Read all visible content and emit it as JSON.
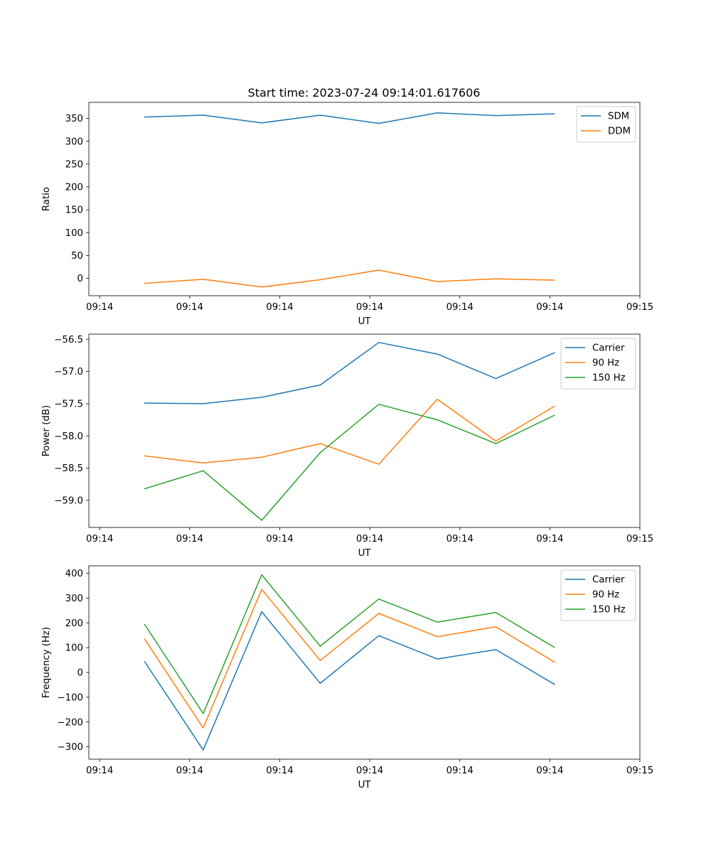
{
  "title": "Start time: 2023-07-24 09:14:01.617606",
  "chart_data": [
    {
      "type": "line",
      "title": "Start time: 2023-07-24 09:14:01.617606",
      "xlabel": "UT",
      "ylabel": "Ratio",
      "x": [
        0.5,
        1.15,
        1.8,
        2.45,
        3.1,
        3.75,
        4.4,
        5.05
      ],
      "xlim": [
        -0.12,
        6.0
      ],
      "xticks": [
        {
          "value": 0,
          "label": "09:14"
        },
        {
          "value": 1,
          "label": "09:14"
        },
        {
          "value": 2,
          "label": "09:14"
        },
        {
          "value": 3,
          "label": "09:14"
        },
        {
          "value": 4,
          "label": "09:14"
        },
        {
          "value": 5,
          "label": "09:14"
        },
        {
          "value": 6,
          "label": "09:15"
        }
      ],
      "ylim": [
        -38,
        385
      ],
      "yticks": [
        {
          "value": 0,
          "label": "0"
        },
        {
          "value": 50,
          "label": "50"
        },
        {
          "value": 100,
          "label": "100"
        },
        {
          "value": 150,
          "label": "150"
        },
        {
          "value": 200,
          "label": "200"
        },
        {
          "value": 250,
          "label": "250"
        },
        {
          "value": 300,
          "label": "300"
        },
        {
          "value": 350,
          "label": "350"
        }
      ],
      "legend": "top-right",
      "series": [
        {
          "name": "SDM",
          "color": "#1f77b4",
          "values": [
            353,
            357,
            340,
            357,
            339,
            362,
            356,
            360
          ]
        },
        {
          "name": "DDM",
          "color": "#ff7f0e",
          "values": [
            -11,
            -2,
            -19,
            -3,
            18,
            -7,
            -1,
            -4
          ]
        }
      ]
    },
    {
      "type": "line",
      "title": "",
      "xlabel": "UT",
      "ylabel": "Power (dB)",
      "x": [
        0.5,
        1.15,
        1.8,
        2.45,
        3.1,
        3.75,
        4.4,
        5.05
      ],
      "xlim": [
        -0.12,
        6.0
      ],
      "xticks": [
        {
          "value": 0,
          "label": "09:14"
        },
        {
          "value": 1,
          "label": "09:14"
        },
        {
          "value": 2,
          "label": "09:14"
        },
        {
          "value": 3,
          "label": "09:14"
        },
        {
          "value": 4,
          "label": "09:14"
        },
        {
          "value": 5,
          "label": "09:14"
        },
        {
          "value": 6,
          "label": "09:15"
        }
      ],
      "ylim": [
        -59.42,
        -56.42
      ],
      "yticks": [
        {
          "value": -59.0,
          "label": "−59.0"
        },
        {
          "value": -58.5,
          "label": "−58.5"
        },
        {
          "value": -58.0,
          "label": "−58.0"
        },
        {
          "value": -57.5,
          "label": "−57.5"
        },
        {
          "value": -57.0,
          "label": "−57.0"
        },
        {
          "value": -56.5,
          "label": "−56.5"
        }
      ],
      "legend": "top-right",
      "series": [
        {
          "name": "Carrier",
          "color": "#1f77b4",
          "values": [
            -57.49,
            -57.5,
            -57.4,
            -57.21,
            -56.55,
            -56.73,
            -57.11,
            -56.71
          ]
        },
        {
          "name": "90 Hz",
          "color": "#ff7f0e",
          "values": [
            -58.31,
            -58.42,
            -58.33,
            -58.12,
            -58.44,
            -57.43,
            -58.08,
            -57.54
          ]
        },
        {
          "name": "150 Hz",
          "color": "#2ca02c",
          "values": [
            -58.82,
            -58.54,
            -59.31,
            -58.26,
            -57.51,
            -57.75,
            -58.12,
            -57.68
          ]
        }
      ]
    },
    {
      "type": "line",
      "title": "",
      "xlabel": "UT",
      "ylabel": "Frequency (Hz)",
      "x": [
        0.5,
        1.15,
        1.8,
        2.45,
        3.1,
        3.75,
        4.4,
        5.05
      ],
      "xlim": [
        -0.12,
        6.0
      ],
      "xticks": [
        {
          "value": 0,
          "label": "09:14"
        },
        {
          "value": 1,
          "label": "09:14"
        },
        {
          "value": 2,
          "label": "09:14"
        },
        {
          "value": 3,
          "label": "09:14"
        },
        {
          "value": 4,
          "label": "09:14"
        },
        {
          "value": 5,
          "label": "09:14"
        },
        {
          "value": 6,
          "label": "09:15"
        }
      ],
      "ylim": [
        -350,
        430
      ],
      "yticks": [
        {
          "value": -300,
          "label": "−300"
        },
        {
          "value": -200,
          "label": "−200"
        },
        {
          "value": -100,
          "label": "−100"
        },
        {
          "value": 0,
          "label": "0"
        },
        {
          "value": 100,
          "label": "100"
        },
        {
          "value": 200,
          "label": "200"
        },
        {
          "value": 300,
          "label": "300"
        },
        {
          "value": 400,
          "label": "400"
        }
      ],
      "legend": "top-right",
      "series": [
        {
          "name": "Carrier",
          "color": "#1f77b4",
          "values": [
            43,
            -313,
            245,
            -44,
            148,
            54,
            92,
            -48
          ]
        },
        {
          "name": "90 Hz",
          "color": "#ff7f0e",
          "values": [
            134,
            -224,
            335,
            48,
            238,
            144,
            184,
            42
          ]
        },
        {
          "name": "150 Hz",
          "color": "#2ca02c",
          "values": [
            193,
            -166,
            394,
            106,
            296,
            203,
            242,
            101
          ]
        }
      ]
    }
  ]
}
